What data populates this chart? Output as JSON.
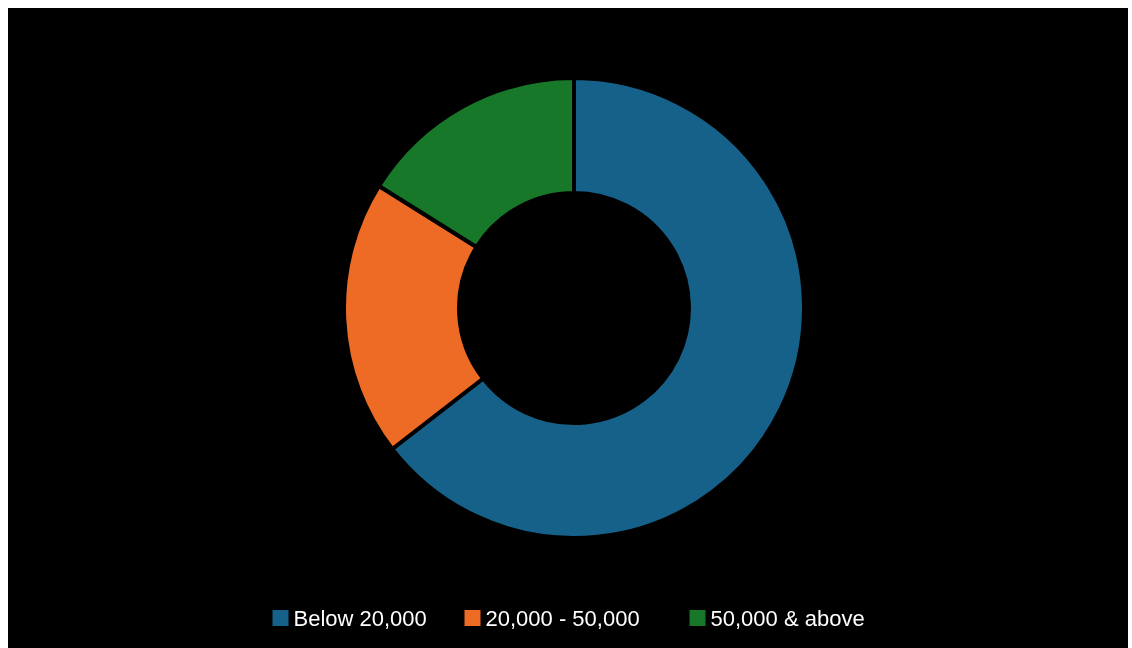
{
  "chart_data": {
    "type": "donut",
    "categories": [
      "Below 20,000",
      "20,000 - 50,000",
      "50,000 & above"
    ],
    "values": [
      64.5,
      19.4,
      16.1
    ],
    "colors": [
      "#16618a",
      "#ee6b26",
      "#18782a"
    ],
    "legend": "bottom"
  }
}
